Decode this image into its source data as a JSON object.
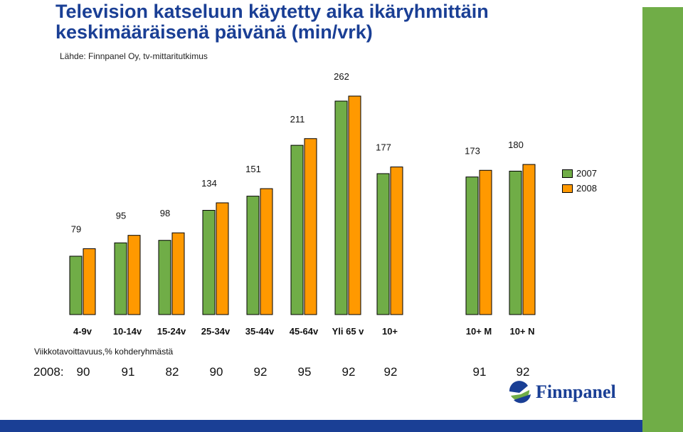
{
  "title_line1": "Television katseluun käytetty aika ikäryhmittäin",
  "title_line2": "keskimääräisenä päivänä (min/vrk)",
  "source": "Lähde: Finnpanel Oy, tv-mittaritutkimus",
  "colors": {
    "accent": "#1a3f95",
    "green": "#70ad47",
    "orange": "#ff9900",
    "bottom_bar": "#1a3f95",
    "right_bar": "#70ad47"
  },
  "chart_data": {
    "type": "bar",
    "categories": [
      "4-9v",
      "10-14v",
      "15-24v",
      "25-34v",
      "35-44v",
      "45-64v",
      "Yli 65 v",
      "10+",
      "10+ M",
      "10+ N"
    ],
    "series": [
      {
        "name": "2007",
        "values": [
          70,
          86,
          89,
          125,
          142,
          203,
          256,
          169,
          165,
          172
        ]
      },
      {
        "name": "2008",
        "values": [
          79,
          95,
          98,
          134,
          151,
          211,
          262,
          177,
          173,
          180
        ]
      }
    ],
    "data_labels": [
      "79",
      "95",
      "98",
      "134",
      "151",
      "211",
      "262",
      "177",
      "173",
      "180"
    ],
    "legend_position": "right",
    "grid": false,
    "ylim": [
      0,
      262
    ]
  },
  "reach": {
    "section_label": "Viikkotavoittavuus,% kohderyhmästä",
    "row_label": "2008:",
    "values": [
      "90",
      "91",
      "82",
      "90",
      "92",
      "95",
      "92",
      "92",
      "91",
      "92"
    ]
  },
  "logo_text": "Finnpanel"
}
